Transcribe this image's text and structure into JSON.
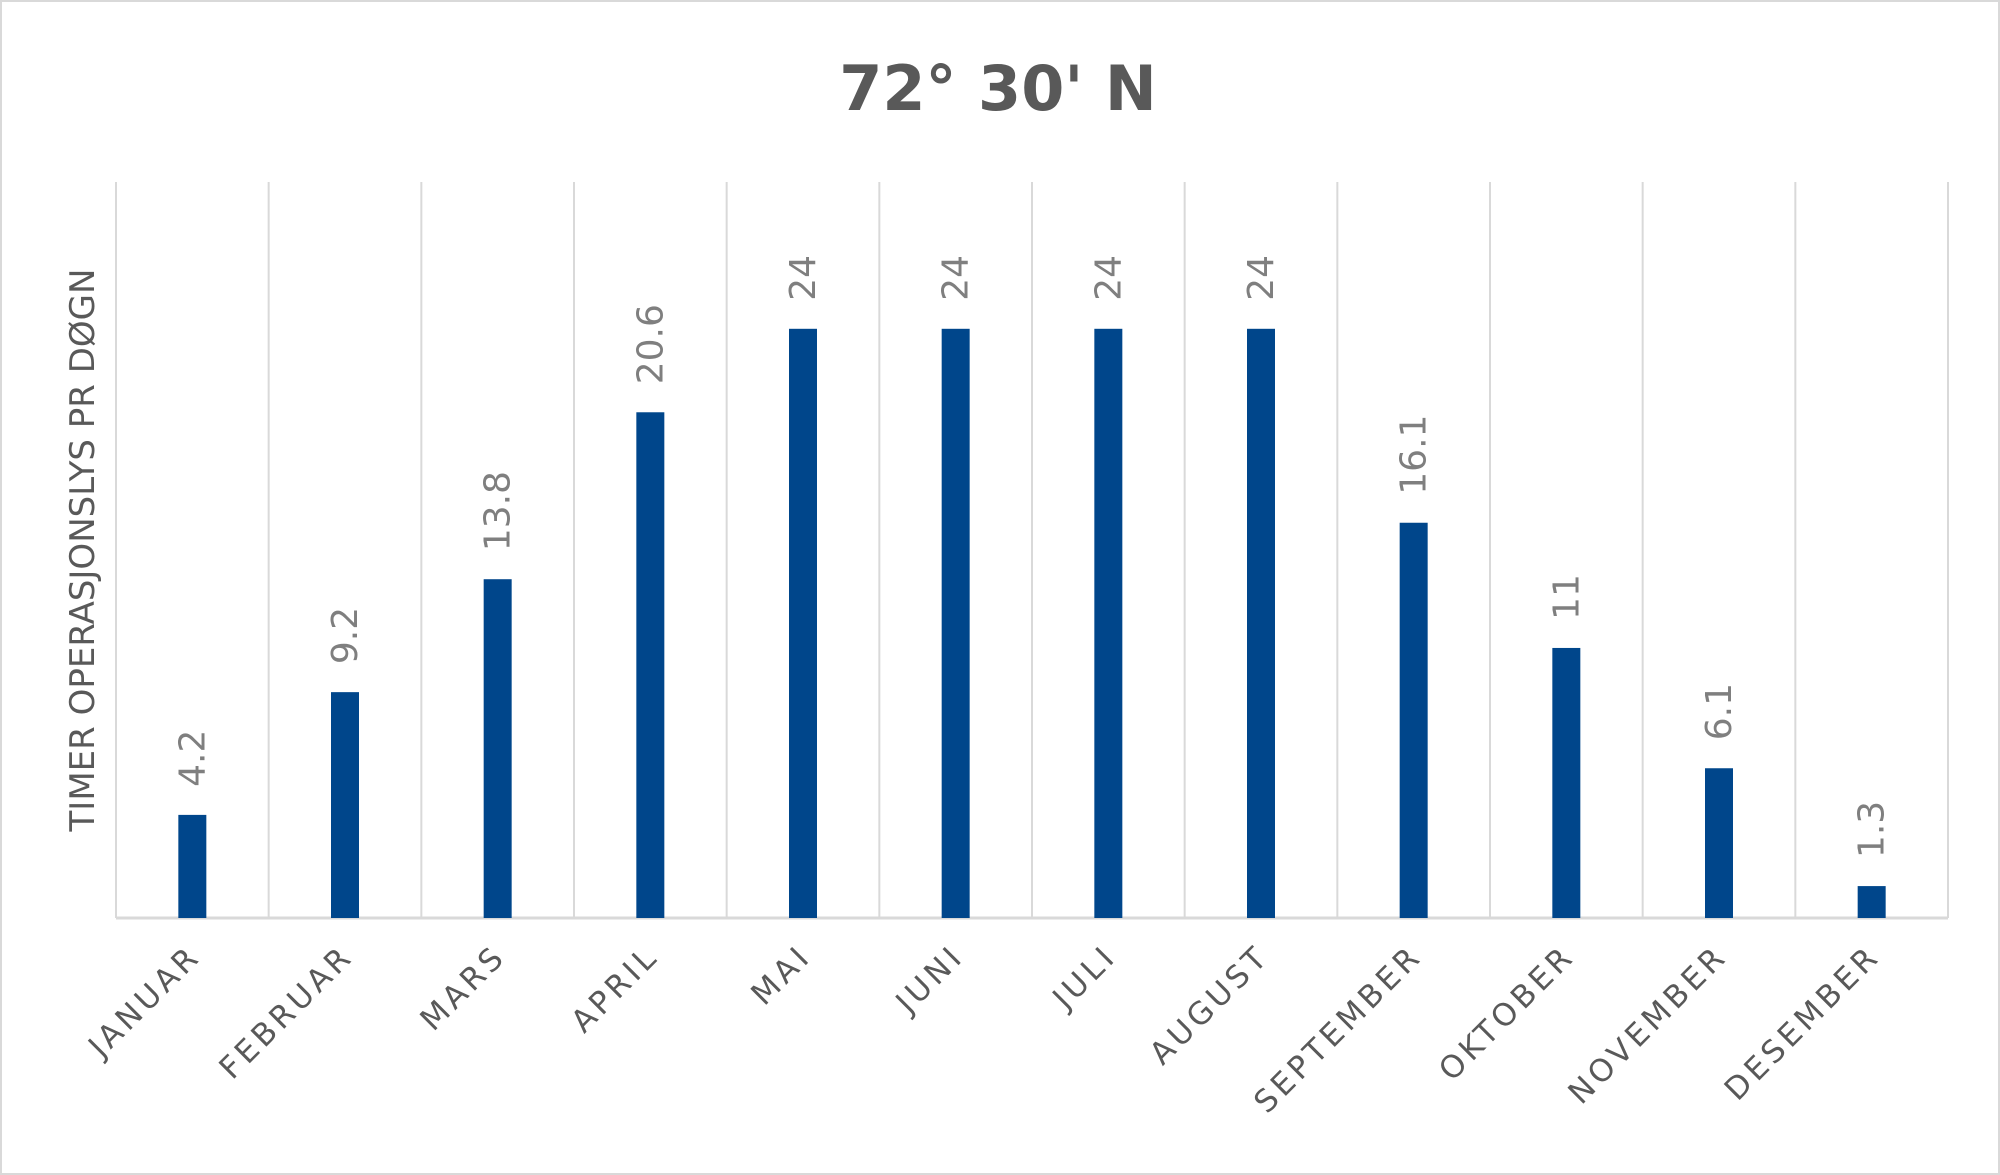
{
  "chart_data": {
    "type": "bar",
    "title": "72° 30' N",
    "xlabel": "",
    "ylabel": "TIMER OPERASJONSLYS PR DØGN",
    "categories": [
      "JANUAR",
      "FEBRUAR",
      "MARS",
      "APRIL",
      "MAI",
      "JUNI",
      "JULI",
      "AUGUST",
      "SEPTEMBER",
      "OKTOBER",
      "NOVEMBER",
      "DESEMBER"
    ],
    "values": [
      4.2,
      9.2,
      13.8,
      20.6,
      24,
      24,
      24,
      24,
      16.1,
      11,
      6.1,
      1.3
    ],
    "data_labels": [
      "4.2",
      "9.2",
      "13.8",
      "20.6",
      "24",
      "24",
      "24",
      "24",
      "16.1",
      "11",
      "6.1",
      "1.3"
    ],
    "ylim": [
      0,
      30
    ],
    "vertical_gridlines": true,
    "legend": "none",
    "bar_color": "#00468b"
  }
}
